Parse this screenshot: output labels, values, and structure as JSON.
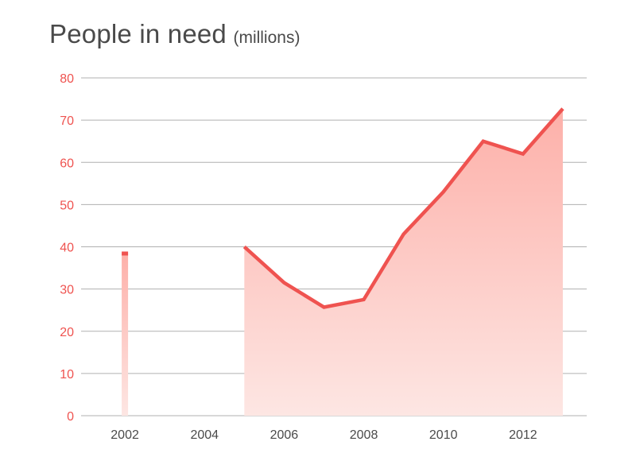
{
  "chart_data": {
    "type": "area",
    "title": "People in need",
    "subtitle": "(millions)",
    "xlabel": "",
    "ylabel": "",
    "ylim": [
      0,
      80
    ],
    "xlim": [
      2000.9,
      2013.6
    ],
    "yticks": [
      0,
      10,
      20,
      30,
      40,
      50,
      60,
      70,
      80
    ],
    "xticks": [
      2002,
      2004,
      2006,
      2008,
      2010,
      2012
    ],
    "grid": true,
    "legend": "none",
    "colors": {
      "line": "#ef5350",
      "fill_top": "#fdb0a9",
      "fill_bottom": "#fde6e3",
      "grid": "#b0b0b0",
      "ytick": "#ef5350",
      "xtick": "#4a4a4a"
    },
    "series": [
      {
        "points": [
          {
            "x": 2002,
            "y": 38.5
          },
          {
            "x": 2005,
            "y": 40
          },
          {
            "x": 2006,
            "y": 31.5
          },
          {
            "x": 2007,
            "y": 25.7
          },
          {
            "x": 2008,
            "y": 27.5
          },
          {
            "x": 2009,
            "y": 43
          },
          {
            "x": 2010,
            "y": 53
          },
          {
            "x": 2011,
            "y": 65
          },
          {
            "x": 2012,
            "y": 62
          },
          {
            "x": 2013,
            "y": 72.7
          }
        ]
      }
    ]
  }
}
